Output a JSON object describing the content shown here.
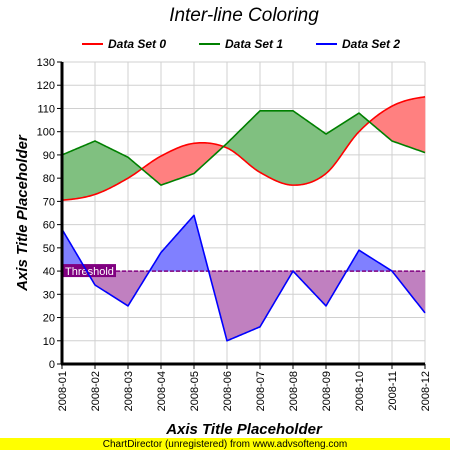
{
  "chart_data": {
    "type": "line",
    "title": "Inter-line Coloring",
    "xlabel": "Axis Title Placeholder",
    "ylabel": "Axis Title Placeholder",
    "categories": [
      "2008-01",
      "2008-02",
      "2008-03",
      "2008-04",
      "2008-05",
      "2008-06",
      "2008-07",
      "2008-08",
      "2008-09",
      "2008-10",
      "2008-11",
      "2008-12"
    ],
    "ylim": [
      0,
      130
    ],
    "yticks": [
      0,
      10,
      20,
      30,
      40,
      50,
      60,
      70,
      80,
      90,
      100,
      110,
      120,
      130
    ],
    "grid": true,
    "legend_position": "top",
    "series": [
      {
        "name": "Data Set 0",
        "color": "#ff0000",
        "smooth": true,
        "values": [
          70.5,
          73,
          80,
          89.5,
          95,
          93,
          82.5,
          77,
          82,
          100,
          111,
          115
        ]
      },
      {
        "name": "Data Set 1",
        "color": "#008000",
        "smooth": false,
        "values": [
          90,
          96,
          89,
          77,
          82,
          95,
          109,
          109,
          99,
          108,
          96,
          91
        ]
      },
      {
        "name": "Data Set 2",
        "color": "#0000ff",
        "smooth": false,
        "values": [
          58,
          34,
          25,
          48,
          64,
          10,
          16,
          40,
          25,
          49,
          40,
          22
        ]
      }
    ],
    "fills": {
      "set0_above_set1": "#ff8080",
      "set1_above_set0": "#80c080",
      "set2_above_threshold": "#8080ff",
      "set2_below_threshold": "#c080c0"
    },
    "threshold": {
      "value": 40,
      "label": "Threshold",
      "color": "#800080"
    }
  },
  "footer": {
    "text": "ChartDirector (unregistered) from www.advsofteng.com",
    "background": "#ffff00"
  }
}
